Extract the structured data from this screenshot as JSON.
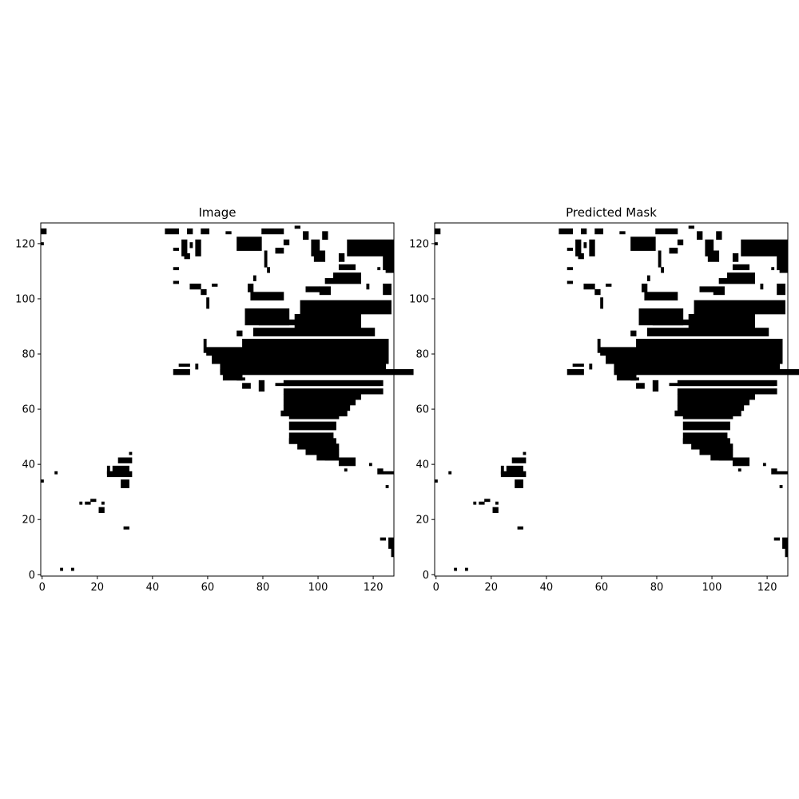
{
  "chart_data": [
    {
      "type": "heatmap",
      "title": "Image",
      "colormap": [
        "#ffffff",
        "#000000"
      ],
      "grid": false,
      "xlim": [
        -0.5,
        127.5
      ],
      "ylim": [
        127.5,
        -0.5
      ],
      "xticks": [
        0,
        20,
        40,
        60,
        80,
        100,
        120
      ],
      "yticks": [
        0,
        20,
        40,
        60,
        80,
        100,
        120
      ],
      "mask_rects": [
        [
          7,
          3,
          1,
          1
        ],
        [
          11,
          3,
          1,
          1
        ],
        [
          123,
          14,
          2,
          1
        ],
        [
          127,
          11,
          1,
          4
        ],
        [
          126,
          14,
          2,
          4
        ],
        [
          30,
          18,
          2,
          1
        ],
        [
          21,
          25,
          2,
          2
        ],
        [
          22,
          27,
          1,
          1
        ],
        [
          14,
          27,
          1,
          1
        ],
        [
          16,
          27,
          2,
          1
        ],
        [
          18,
          28,
          2,
          1
        ],
        [
          0,
          35,
          1,
          1
        ],
        [
          5,
          38,
          1,
          1
        ],
        [
          29,
          35,
          3,
          3
        ],
        [
          24,
          38,
          9,
          2
        ],
        [
          24,
          40,
          1,
          3
        ],
        [
          26,
          40,
          6,
          3
        ],
        [
          28,
          43,
          5,
          2
        ],
        [
          32,
          45,
          1,
          1
        ],
        [
          125,
          33,
          1,
          1
        ],
        [
          124,
          38,
          4,
          1
        ],
        [
          122,
          39,
          2,
          2
        ],
        [
          110,
          39,
          1,
          1
        ],
        [
          119,
          41,
          1,
          1
        ],
        [
          108,
          42,
          6,
          2
        ],
        [
          103,
          43,
          11,
          1
        ],
        [
          100,
          44,
          8,
          2
        ],
        [
          96,
          46,
          12,
          2
        ],
        [
          93,
          48,
          15,
          2
        ],
        [
          90,
          50,
          17,
          2
        ],
        [
          90,
          52,
          16,
          4
        ],
        [
          90,
          56,
          17,
          3
        ],
        [
          90,
          59,
          18,
          2
        ],
        [
          87,
          60,
          24,
          2
        ],
        [
          88,
          62,
          24,
          2
        ],
        [
          88,
          64,
          26,
          2
        ],
        [
          88,
          66,
          28,
          2
        ],
        [
          88,
          68,
          36,
          2
        ],
        [
          85,
          70,
          38,
          1
        ],
        [
          73,
          70,
          3,
          2
        ],
        [
          79,
          71,
          2,
          4
        ],
        [
          88,
          71,
          36,
          2
        ],
        [
          71,
          72,
          3,
          1
        ],
        [
          66,
          73,
          7,
          2
        ],
        [
          48,
          75,
          6,
          2
        ],
        [
          50,
          77,
          4,
          1
        ],
        [
          56,
          77,
          1,
          2
        ],
        [
          65,
          75,
          70,
          2
        ],
        [
          65,
          77,
          60,
          3
        ],
        [
          62,
          80,
          64,
          3
        ],
        [
          60,
          83,
          66,
          3
        ],
        [
          73,
          86,
          53,
          4
        ],
        [
          77,
          90,
          44,
          3
        ],
        [
          79,
          93,
          34,
          2
        ],
        [
          59,
          86,
          1,
          5
        ],
        [
          71,
          89,
          2,
          2
        ],
        [
          74,
          97,
          16,
          6
        ],
        [
          76,
          103,
          12,
          3
        ],
        [
          92,
          95,
          24,
          5
        ],
        [
          94,
          100,
          33,
          5
        ],
        [
          96,
          105,
          5,
          2
        ],
        [
          101,
          105,
          4,
          3
        ],
        [
          103,
          108,
          13,
          2
        ],
        [
          106,
          110,
          10,
          3
        ],
        [
          108,
          113,
          6,
          2
        ],
        [
          60,
          101,
          1,
          4
        ],
        [
          58,
          104,
          2,
          2
        ],
        [
          54,
          106,
          4,
          2
        ],
        [
          62,
          106,
          2,
          1
        ],
        [
          48,
          107,
          2,
          1
        ],
        [
          48,
          112,
          2,
          1
        ],
        [
          48,
          119,
          2,
          1
        ],
        [
          75,
          106,
          2,
          3
        ],
        [
          77,
          109,
          1,
          2
        ],
        [
          82,
          112,
          1,
          2
        ],
        [
          52,
          117,
          2,
          2
        ],
        [
          54,
          121,
          1,
          2
        ],
        [
          81,
          118,
          1,
          6
        ],
        [
          99,
          118,
          4,
          4
        ],
        [
          108,
          117,
          2,
          3
        ],
        [
          118,
          106,
          1,
          2
        ],
        [
          122,
          112,
          1,
          1
        ],
        [
          124,
          106,
          3,
          4
        ],
        [
          125,
          112,
          3,
          2
        ],
        [
          124,
          117,
          4,
          6
        ],
        [
          114,
          120,
          11,
          2
        ],
        [
          111,
          122,
          17,
          6
        ],
        [
          85,
          119,
          3,
          2
        ],
        [
          88,
          122,
          2,
          2
        ],
        [
          71,
          123,
          9,
          5
        ],
        [
          80,
          126,
          8,
          2
        ],
        [
          58,
          126,
          3,
          2
        ],
        [
          45,
          126,
          5,
          2
        ],
        [
          51,
          122,
          2,
          6
        ],
        [
          53,
          126,
          2,
          2
        ],
        [
          56,
          122,
          2,
          6
        ],
        [
          67,
          125,
          2,
          1
        ],
        [
          92,
          127,
          2,
          1
        ],
        [
          95,
          125,
          2,
          3
        ],
        [
          98,
          122,
          3,
          6
        ],
        [
          102,
          125,
          2,
          3
        ],
        [
          0,
          121,
          1,
          1
        ],
        [
          0,
          126,
          2,
          2
        ]
      ]
    },
    {
      "type": "heatmap",
      "title": "Predicted Mask",
      "colormap": [
        "#ffffff",
        "#000000"
      ],
      "grid": false,
      "xlim": [
        -0.5,
        127.5
      ],
      "ylim": [
        127.5,
        -0.5
      ],
      "xticks": [
        0,
        20,
        40,
        60,
        80,
        100,
        120
      ],
      "yticks": [
        0,
        20,
        40,
        60,
        80,
        100,
        120
      ],
      "mask_rects": [
        [
          7,
          3,
          1,
          1
        ],
        [
          11,
          3,
          1,
          1
        ],
        [
          123,
          14,
          2,
          1
        ],
        [
          127,
          11,
          1,
          4
        ],
        [
          126,
          14,
          2,
          4
        ],
        [
          30,
          18,
          2,
          1
        ],
        [
          21,
          25,
          2,
          2
        ],
        [
          22,
          27,
          1,
          1
        ],
        [
          14,
          27,
          1,
          1
        ],
        [
          16,
          27,
          2,
          1
        ],
        [
          18,
          28,
          2,
          1
        ],
        [
          0,
          35,
          1,
          1
        ],
        [
          5,
          38,
          1,
          1
        ],
        [
          29,
          35,
          3,
          3
        ],
        [
          24,
          38,
          9,
          2
        ],
        [
          24,
          40,
          1,
          3
        ],
        [
          26,
          40,
          6,
          3
        ],
        [
          28,
          43,
          5,
          2
        ],
        [
          32,
          45,
          1,
          1
        ],
        [
          125,
          33,
          1,
          1
        ],
        [
          124,
          38,
          4,
          1
        ],
        [
          122,
          39,
          2,
          2
        ],
        [
          110,
          39,
          1,
          1
        ],
        [
          119,
          41,
          1,
          1
        ],
        [
          108,
          42,
          6,
          2
        ],
        [
          103,
          43,
          11,
          1
        ],
        [
          100,
          44,
          8,
          2
        ],
        [
          96,
          46,
          12,
          2
        ],
        [
          93,
          48,
          15,
          2
        ],
        [
          90,
          50,
          17,
          2
        ],
        [
          90,
          52,
          16,
          4
        ],
        [
          90,
          56,
          17,
          3
        ],
        [
          90,
          59,
          18,
          2
        ],
        [
          87,
          60,
          24,
          2
        ],
        [
          88,
          62,
          24,
          2
        ],
        [
          88,
          64,
          26,
          2
        ],
        [
          88,
          66,
          28,
          2
        ],
        [
          88,
          68,
          36,
          2
        ],
        [
          85,
          70,
          38,
          1
        ],
        [
          73,
          70,
          3,
          2
        ],
        [
          79,
          71,
          2,
          4
        ],
        [
          88,
          71,
          36,
          2
        ],
        [
          71,
          72,
          3,
          1
        ],
        [
          66,
          73,
          7,
          2
        ],
        [
          48,
          75,
          6,
          2
        ],
        [
          50,
          77,
          4,
          1
        ],
        [
          56,
          77,
          1,
          2
        ],
        [
          65,
          75,
          70,
          2
        ],
        [
          65,
          77,
          60,
          3
        ],
        [
          62,
          80,
          64,
          3
        ],
        [
          60,
          83,
          66,
          3
        ],
        [
          73,
          86,
          53,
          4
        ],
        [
          77,
          90,
          44,
          3
        ],
        [
          79,
          93,
          34,
          2
        ],
        [
          59,
          86,
          1,
          5
        ],
        [
          71,
          89,
          2,
          2
        ],
        [
          74,
          97,
          16,
          6
        ],
        [
          76,
          103,
          12,
          3
        ],
        [
          92,
          95,
          24,
          5
        ],
        [
          94,
          100,
          33,
          5
        ],
        [
          96,
          105,
          5,
          2
        ],
        [
          101,
          105,
          4,
          3
        ],
        [
          103,
          108,
          13,
          2
        ],
        [
          106,
          110,
          10,
          3
        ],
        [
          108,
          113,
          6,
          2
        ],
        [
          60,
          101,
          1,
          4
        ],
        [
          58,
          104,
          2,
          2
        ],
        [
          54,
          106,
          4,
          2
        ],
        [
          62,
          106,
          2,
          1
        ],
        [
          48,
          107,
          2,
          1
        ],
        [
          48,
          112,
          2,
          1
        ],
        [
          48,
          119,
          2,
          1
        ],
        [
          75,
          106,
          2,
          3
        ],
        [
          77,
          109,
          1,
          2
        ],
        [
          82,
          112,
          1,
          2
        ],
        [
          52,
          117,
          2,
          2
        ],
        [
          54,
          121,
          1,
          2
        ],
        [
          81,
          118,
          1,
          6
        ],
        [
          99,
          118,
          4,
          4
        ],
        [
          108,
          117,
          2,
          3
        ],
        [
          118,
          106,
          1,
          2
        ],
        [
          122,
          112,
          1,
          1
        ],
        [
          124,
          106,
          3,
          4
        ],
        [
          125,
          112,
          3,
          2
        ],
        [
          124,
          117,
          4,
          6
        ],
        [
          114,
          120,
          11,
          2
        ],
        [
          111,
          122,
          17,
          6
        ],
        [
          85,
          119,
          3,
          2
        ],
        [
          88,
          122,
          2,
          2
        ],
        [
          71,
          123,
          9,
          5
        ],
        [
          80,
          126,
          8,
          2
        ],
        [
          58,
          126,
          3,
          2
        ],
        [
          45,
          126,
          5,
          2
        ],
        [
          51,
          122,
          2,
          6
        ],
        [
          53,
          126,
          2,
          2
        ],
        [
          56,
          122,
          2,
          6
        ],
        [
          67,
          125,
          2,
          1
        ],
        [
          92,
          127,
          2,
          1
        ],
        [
          95,
          125,
          2,
          3
        ],
        [
          98,
          122,
          3,
          6
        ],
        [
          102,
          125,
          2,
          3
        ],
        [
          0,
          121,
          1,
          1
        ],
        [
          0,
          126,
          2,
          2
        ]
      ]
    }
  ]
}
